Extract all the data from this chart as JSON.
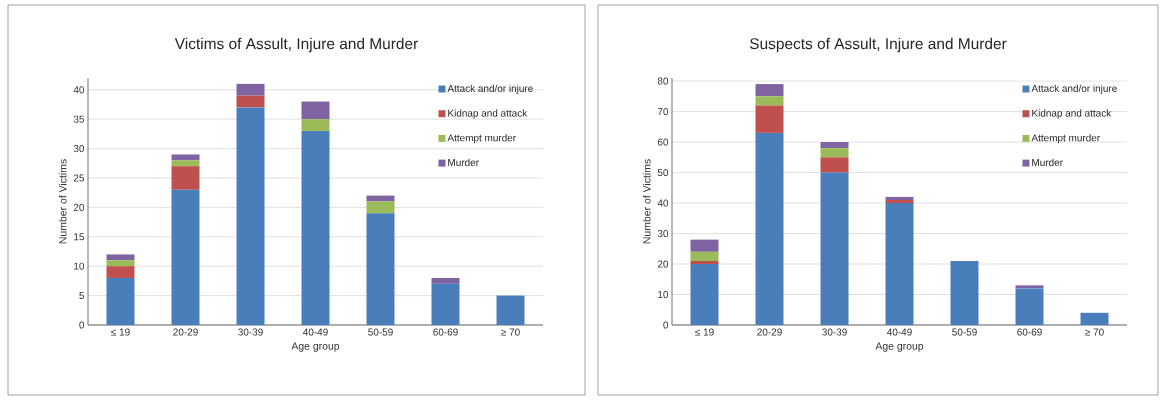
{
  "chart_data": [
    {
      "type": "bar",
      "title": "Victims of Assult, Injure and Murder",
      "xlabel": "Age group",
      "ylabel": "Number of Victims",
      "categories": [
        "≤ 19",
        "20-29",
        "30-39",
        "40-49",
        "50-59",
        "60-69",
        "≥ 70"
      ],
      "stacked": true,
      "ylim": [
        0,
        42
      ],
      "yticks": [
        0,
        5,
        10,
        15,
        20,
        25,
        30,
        35,
        40
      ],
      "grid": "y",
      "legend": "top right",
      "series": [
        {
          "name": "Attack and/or injure",
          "color": "#4a7ebb",
          "values": [
            8,
            23,
            37,
            33,
            19,
            7,
            5
          ]
        },
        {
          "name": "Kidnap and attack",
          "color": "#c0504d",
          "values": [
            2,
            4,
            2,
            0,
            0,
            0,
            0
          ]
        },
        {
          "name": "Attempt murder",
          "color": "#9bbb59",
          "values": [
            1,
            1,
            0,
            2,
            2,
            0,
            0
          ]
        },
        {
          "name": "Murder",
          "color": "#8064a2",
          "values": [
            1,
            1,
            2,
            3,
            1,
            1,
            0
          ]
        }
      ]
    },
    {
      "type": "bar",
      "title": "Suspects of Assult, Injure and Murder",
      "xlabel": "Age group",
      "ylabel": "Number of Victims",
      "categories": [
        "≤ 19",
        "20-29",
        "30-39",
        "40-49",
        "50-59",
        "60-69",
        "≥ 70"
      ],
      "stacked": true,
      "ylim": [
        0,
        81
      ],
      "yticks": [
        0,
        10,
        20,
        30,
        40,
        50,
        60,
        70,
        80
      ],
      "grid": "y",
      "legend": "top right",
      "series": [
        {
          "name": "Attack and/or injure",
          "color": "#4a7ebb",
          "values": [
            20,
            63,
            50,
            40,
            21,
            12,
            4
          ]
        },
        {
          "name": "Kidnap and attack",
          "color": "#c0504d",
          "values": [
            1,
            9,
            5,
            1,
            0,
            0,
            0
          ]
        },
        {
          "name": "Attempt murder",
          "color": "#9bbb59",
          "values": [
            3,
            3,
            3,
            0,
            0,
            0,
            0
          ]
        },
        {
          "name": "Murder",
          "color": "#8064a2",
          "values": [
            4,
            4,
            2,
            1,
            0,
            1,
            0
          ]
        }
      ]
    }
  ]
}
